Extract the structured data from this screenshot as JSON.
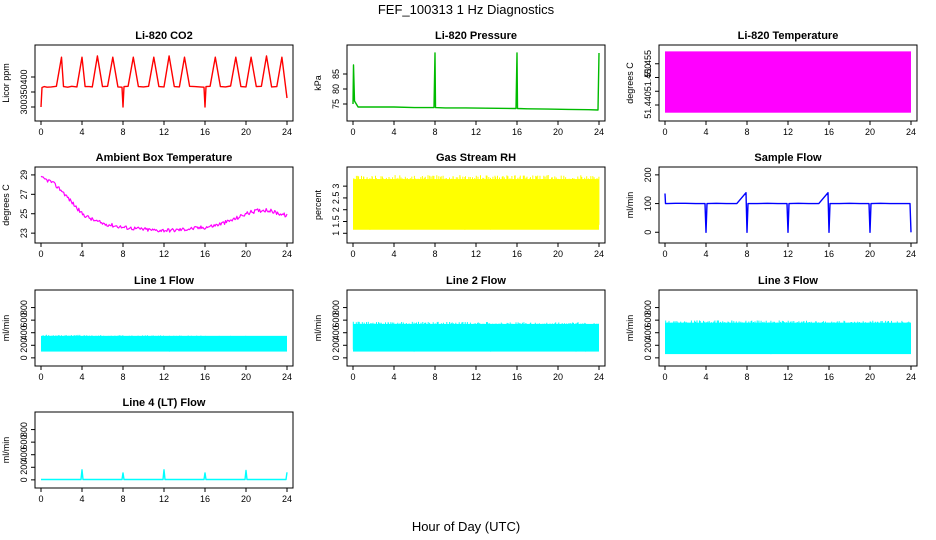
{
  "figure": {
    "title": "FEF_100313  1 Hz Diagnostics",
    "xlabel": "Hour of Day (UTC)"
  },
  "chart_data": [
    {
      "type": "line",
      "title": "Li-820 CO2",
      "ylabel": "Licor ppm",
      "color": "#ff0000",
      "xlim": [
        0,
        24
      ],
      "ylim": [
        270,
        490
      ],
      "xticks": [
        0,
        4,
        8,
        12,
        16,
        20,
        24
      ],
      "yticks": [
        300,
        350,
        400
      ],
      "x": [
        0,
        0.1,
        0.3,
        0.6,
        1.0,
        1.5,
        2.0,
        2.2,
        2.6,
        3.0,
        3.5,
        4.0,
        4.3,
        4.7,
        5.0,
        5.5,
        6.0,
        6.5,
        7.0,
        7.5,
        7.9,
        8.0,
        8.1,
        8.5,
        9.0,
        9.5,
        10.0,
        10.5,
        11.0,
        11.5,
        12.0,
        12.5,
        13.0,
        13.5,
        14.0,
        14.5,
        15.0,
        15.5,
        15.9,
        16.0,
        16.1,
        16.5,
        17.0,
        17.5,
        18.0,
        18.5,
        19.0,
        19.5,
        20.0,
        20.5,
        21.0,
        21.5,
        22.0,
        22.5,
        23.0,
        23.5,
        24.0
      ],
      "y": [
        300,
        365,
        368,
        366,
        367,
        369,
        466,
        368,
        366,
        369,
        367,
        466,
        368,
        368,
        367,
        470,
        368,
        369,
        466,
        367,
        366,
        300,
        368,
        369,
        466,
        368,
        367,
        369,
        466,
        368,
        367,
        470,
        368,
        367,
        466,
        369,
        368,
        367,
        366,
        300,
        368,
        369,
        466,
        368,
        367,
        370,
        466,
        368,
        367,
        466,
        368,
        369,
        470,
        367,
        368,
        466,
        330
      ]
    },
    {
      "type": "line",
      "title": "Li-820 Pressure",
      "ylabel": "kPa",
      "color": "#00bb00",
      "xlim": [
        0,
        24
      ],
      "ylim": [
        71,
        93
      ],
      "xticks": [
        0,
        4,
        8,
        12,
        16,
        20,
        24
      ],
      "yticks": [
        75,
        80,
        85
      ],
      "x": [
        0,
        0.05,
        0.15,
        0.5,
        2,
        4,
        6,
        7.9,
        8.0,
        8.05,
        9,
        11,
        13,
        15.9,
        16.0,
        16.05,
        17,
        19,
        21,
        23,
        23.9,
        24.0
      ],
      "y": [
        75,
        88,
        76,
        74,
        74,
        74,
        73.8,
        73.8,
        92,
        73.8,
        73.7,
        73.7,
        73.6,
        73.5,
        92,
        73.5,
        73.4,
        73.3,
        73.2,
        73.1,
        73.0,
        92
      ]
    },
    {
      "type": "area",
      "title": "Li-820 Temperature",
      "ylabel": "degrees C",
      "color": "#ff00ff",
      "xlim": [
        0,
        24
      ],
      "ylim": [
        51.436,
        51.46
      ],
      "xticks": [
        0,
        4,
        8,
        12,
        16,
        20,
        24
      ],
      "yticks": [
        51.44,
        51.445,
        51.45,
        51.455
      ],
      "ytick_labels": [
        "51.440",
        "",
        "51.450",
        "51.455"
      ],
      "x": [
        0,
        24
      ],
      "y_low": [
        51.4372,
        51.4372
      ],
      "y_high": [
        51.4595,
        51.4595
      ]
    },
    {
      "type": "line",
      "title": "Ambient Box Temperature",
      "ylabel": "degrees C",
      "color": "#ff00ff",
      "xlim": [
        0,
        24
      ],
      "ylim": [
        22.5,
        29.3
      ],
      "xticks": [
        0,
        4,
        8,
        12,
        16,
        20,
        24
      ],
      "yticks": [
        23,
        25,
        27,
        29
      ],
      "x": [
        0,
        1,
        2,
        3,
        4,
        5,
        6,
        7,
        8,
        9,
        10,
        11,
        12,
        13,
        14,
        15,
        16,
        17,
        18,
        19,
        20,
        21,
        22,
        23,
        24
      ],
      "y": [
        28.7,
        28.3,
        27.4,
        26.2,
        25.0,
        24.4,
        24.0,
        23.8,
        23.6,
        23.5,
        23.4,
        23.3,
        23.3,
        23.3,
        23.4,
        23.5,
        23.6,
        23.8,
        24.1,
        24.5,
        25.0,
        25.3,
        25.4,
        25.1,
        24.8
      ],
      "noise": 0.4
    },
    {
      "type": "area",
      "title": "Gas Stream RH",
      "ylabel": "percent",
      "color": "#ffff00",
      "xlim": [
        0,
        24
      ],
      "ylim": [
        0.8,
        3.6
      ],
      "xticks": [
        0,
        4,
        8,
        12,
        16,
        20,
        24
      ],
      "yticks": [
        1.0,
        1.5,
        2.0,
        2.5,
        3.0
      ],
      "x": [
        0,
        24
      ],
      "y_low": [
        1.15,
        1.15
      ],
      "y_high": [
        3.3,
        3.3
      ]
    },
    {
      "type": "line",
      "title": "Sample Flow",
      "ylabel": "ml/min",
      "color": "#0000ff",
      "xlim": [
        0,
        24
      ],
      "ylim": [
        -20,
        210
      ],
      "xticks": [
        0,
        4,
        8,
        12,
        16,
        20,
        24
      ],
      "yticks": [
        0,
        100,
        200
      ],
      "x": [
        0,
        0.05,
        0.2,
        1,
        2,
        3,
        3.9,
        4.0,
        4.1,
        5,
        6,
        7,
        7.9,
        8.0,
        8.1,
        9,
        10,
        11,
        11.9,
        12.0,
        12.1,
        13,
        14,
        15,
        15.9,
        16.0,
        16.1,
        17,
        18,
        19,
        19.9,
        20.0,
        20.1,
        21,
        22,
        23,
        23.9,
        24.0
      ],
      "y": [
        135,
        100,
        100,
        101,
        101,
        100,
        100,
        0,
        100,
        101,
        100,
        100,
        138,
        0,
        100,
        100,
        101,
        100,
        100,
        0,
        100,
        101,
        100,
        100,
        138,
        0,
        100,
        100,
        101,
        100,
        100,
        0,
        100,
        101,
        100,
        100,
        100,
        0
      ]
    },
    {
      "type": "area",
      "title": "Line 1 Flow",
      "ylabel": "ml/min",
      "color": "#00ffff",
      "xlim": [
        0,
        24
      ],
      "ylim": [
        -50,
        1000
      ],
      "xticks": [
        0,
        4,
        8,
        12,
        16,
        20,
        24
      ],
      "yticks": [
        0,
        200,
        400,
        600,
        800
      ],
      "x": [
        0,
        24
      ],
      "y_low": [
        100,
        100
      ],
      "y_high": [
        350,
        330
      ]
    },
    {
      "type": "area",
      "title": "Line 2 Flow",
      "ylabel": "ml/min",
      "color": "#00ffff",
      "xlim": [
        0,
        24
      ],
      "ylim": [
        -50,
        1000
      ],
      "xticks": [
        0,
        4,
        8,
        12,
        16,
        20,
        24
      ],
      "yticks": [
        0,
        200,
        400,
        600,
        800
      ],
      "x": [
        0,
        24
      ],
      "y_low": [
        100,
        100
      ],
      "y_high": [
        540,
        530
      ]
    },
    {
      "type": "area",
      "title": "Line 3 Flow",
      "ylabel": "ml/min",
      "color": "#00ffff",
      "xlim": [
        0,
        24
      ],
      "ylim": [
        -50,
        1000
      ],
      "xticks": [
        0,
        4,
        8,
        12,
        16,
        20,
        24
      ],
      "yticks": [
        0,
        200,
        400,
        600,
        800
      ],
      "x": [
        0,
        24
      ],
      "y_low": [
        60,
        60
      ],
      "y_high": [
        560,
        550
      ]
    },
    {
      "type": "line",
      "title": "Line 4 (LT) Flow",
      "ylabel": "ml/min",
      "color": "#00ffff",
      "xlim": [
        0,
        24
      ],
      "ylim": [
        -50,
        1000
      ],
      "xticks": [
        0,
        4,
        8,
        12,
        16,
        20,
        24
      ],
      "yticks": [
        0,
        200,
        400,
        600,
        800
      ],
      "x": [
        0,
        3.9,
        4.0,
        4.1,
        7.9,
        8.0,
        8.1,
        11.9,
        12.0,
        12.1,
        15.9,
        16.0,
        16.1,
        19.9,
        20.0,
        20.1,
        23.9,
        24.0
      ],
      "y": [
        5,
        5,
        160,
        5,
        5,
        110,
        5,
        5,
        160,
        5,
        5,
        110,
        5,
        5,
        150,
        5,
        5,
        120
      ]
    }
  ]
}
